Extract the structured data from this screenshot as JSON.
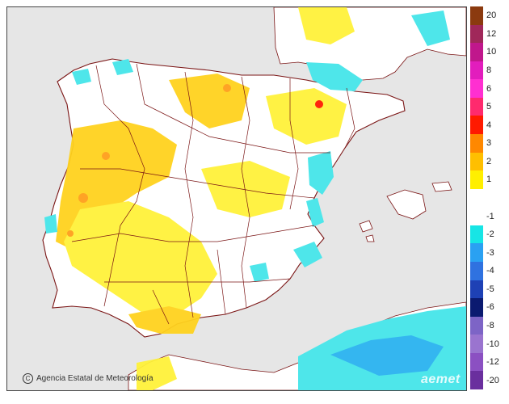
{
  "credit": {
    "text": "Agencia Estatal de Meteorología",
    "icon": "copyright-icon"
  },
  "brand": {
    "text": "aemet"
  },
  "legend": {
    "items": [
      {
        "label": "20",
        "color": "#8b3a0f"
      },
      {
        "label": "12",
        "color": "#a0285a"
      },
      {
        "label": "10",
        "color": "#c0178c"
      },
      {
        "label": "8",
        "color": "#e21dbd"
      },
      {
        "label": "6",
        "color": "#ff2fd1"
      },
      {
        "label": "5",
        "color": "#ff2a6e"
      },
      {
        "label": "4",
        "color": "#ff1a00"
      },
      {
        "label": "3",
        "color": "#ff8800"
      },
      {
        "label": "2",
        "color": "#ffbf00"
      },
      {
        "label": "1",
        "color": "#ffef00"
      },
      {
        "label": "",
        "color": "#ffffff"
      },
      {
        "label": "-1",
        "color": "#ffffff"
      },
      {
        "label": "-2",
        "color": "#17e5e5"
      },
      {
        "label": "-3",
        "color": "#2aa1f2"
      },
      {
        "label": "-4",
        "color": "#2f72e0"
      },
      {
        "label": "-5",
        "color": "#1e41b5"
      },
      {
        "label": "-6",
        "color": "#0b1a70"
      },
      {
        "label": "-8",
        "color": "#7d64c6"
      },
      {
        "label": "-10",
        "color": "#9a74cf"
      },
      {
        "label": "-12",
        "color": "#8b50c2"
      },
      {
        "label": "-20",
        "color": "#6a2f9e"
      }
    ]
  },
  "colors": {
    "sea": "#e6e6e6",
    "land": "#ffffff",
    "border": "#7a1414",
    "positive_light": "#fff23a",
    "positive_mid": "#ffd21e",
    "positive_strong": "#ff9f1a",
    "negative_light": "#4ee6ea",
    "negative_mid": "#2aa1f2"
  }
}
